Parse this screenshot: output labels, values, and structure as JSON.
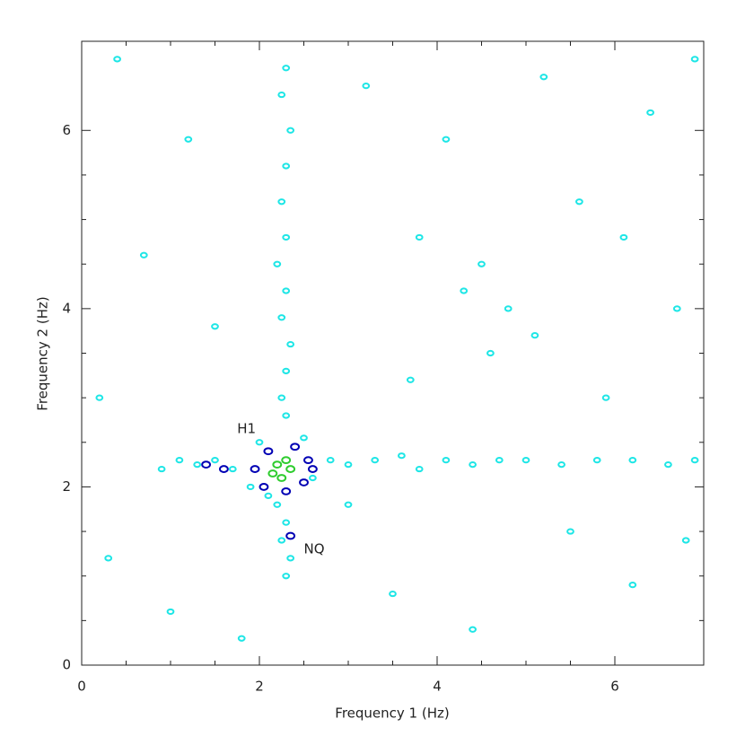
{
  "chart_data": {
    "type": "scatter",
    "x_label": "Frequency 1 (Hz)",
    "y_label": "Frequency 2 (Hz)",
    "xlim": [
      0,
      7
    ],
    "ylim": [
      0,
      7
    ],
    "xticks": [
      0,
      2,
      4,
      6
    ],
    "yticks": [
      0,
      2,
      4,
      6
    ],
    "annotations": [
      {
        "text": "H1",
        "x": 1.75,
        "y": 2.65
      },
      {
        "text": "NQ",
        "x": 2.5,
        "y": 1.3
      }
    ],
    "series": [
      {
        "color": "#1ee6e6",
        "x": [
          2.3,
          2.35,
          2.25,
          2.3,
          2.2,
          2.3,
          2.25,
          2.3,
          2.35,
          2.25,
          2.3,
          2.2,
          2.3,
          2.25,
          2.3,
          2.35,
          2.25,
          2.3,
          0.9,
          1.1,
          1.3,
          1.5,
          1.7,
          2.8,
          3.0,
          3.3,
          3.6,
          3.8,
          4.1,
          4.4,
          4.7,
          5.0,
          5.4,
          5.8,
          6.2,
          6.6,
          6.9,
          0.4,
          1.2,
          0.7,
          1.5,
          0.3,
          1.0,
          3.2,
          4.1,
          5.2,
          6.4,
          4.5,
          4.3,
          4.8,
          5.1,
          4.6,
          3.8,
          6.1,
          6.7,
          5.5,
          3.5,
          4.4,
          6.2,
          6.8,
          3.0,
          5.9,
          0.2,
          1.8,
          3.7,
          5.6,
          6.9,
          2.0,
          2.6,
          1.9,
          2.5,
          2.1
        ],
        "values": [
          1.0,
          1.2,
          1.4,
          1.6,
          1.8,
          2.8,
          3.0,
          3.3,
          3.6,
          3.9,
          4.2,
          4.5,
          4.8,
          5.2,
          5.6,
          6.0,
          6.4,
          6.7,
          2.2,
          2.3,
          2.25,
          2.3,
          2.2,
          2.3,
          2.25,
          2.3,
          2.35,
          2.2,
          2.3,
          2.25,
          2.3,
          2.3,
          2.25,
          2.3,
          2.3,
          2.25,
          2.3,
          6.8,
          5.9,
          4.6,
          3.8,
          1.2,
          0.6,
          6.5,
          5.9,
          6.6,
          6.2,
          4.5,
          4.2,
          4.0,
          3.7,
          3.5,
          4.8,
          4.8,
          4.0,
          1.5,
          0.8,
          0.4,
          0.9,
          1.4,
          1.8,
          3.0,
          3.0,
          0.3,
          3.2,
          5.2,
          6.8,
          2.5,
          2.1,
          2.0,
          2.55,
          1.9
        ]
      },
      {
        "color": "#0000b4",
        "x": [
          2.1,
          2.4,
          2.55,
          2.5,
          2.3,
          2.05,
          1.95,
          1.4,
          1.6,
          2.35,
          2.6
        ],
        "values": [
          2.4,
          2.45,
          2.3,
          2.05,
          1.95,
          2.0,
          2.2,
          2.25,
          2.2,
          1.45,
          2.2
        ]
      },
      {
        "color": "#2ecc2e",
        "x": [
          2.2,
          2.3,
          2.15,
          2.25,
          2.35
        ],
        "values": [
          2.25,
          2.3,
          2.15,
          2.1,
          2.2
        ]
      }
    ]
  }
}
